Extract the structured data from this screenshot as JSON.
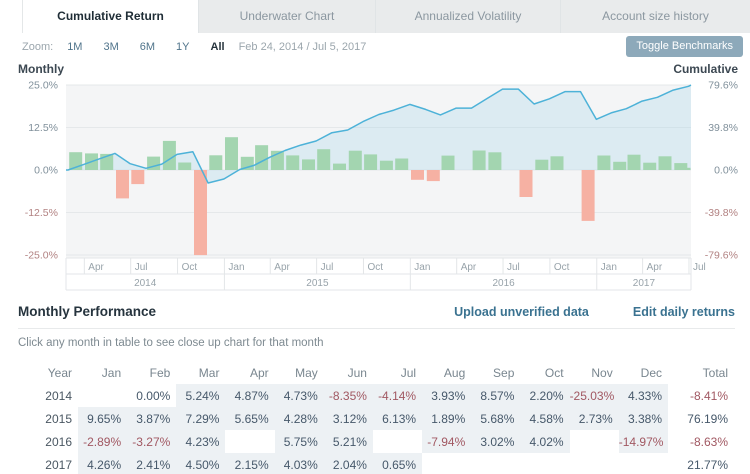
{
  "tabs": [
    {
      "label": "Cumulative Return",
      "active": true
    },
    {
      "label": "Underwater Chart",
      "active": false
    },
    {
      "label": "Annualized Volatility",
      "active": false
    },
    {
      "label": "Account size history",
      "active": false
    }
  ],
  "toolbar": {
    "zoom_label": "Zoom:",
    "ranges": [
      "1M",
      "3M",
      "6M",
      "1Y",
      "All"
    ],
    "active_range": "All",
    "date_range": "Feb 24, 2014 / Jul 5, 2017",
    "toggle_benchmarks_label": "Toggle Benchmarks"
  },
  "chart_data": {
    "type": "combo",
    "left_axis": {
      "title": "Monthly",
      "ticks": [
        "25.0%",
        "12.5%",
        "0.0%",
        "-12.5%",
        "-25.0%"
      ],
      "range": [
        -25,
        25
      ]
    },
    "right_axis": {
      "title": "Cumulative",
      "ticks": [
        "79.6%",
        "39.8%",
        "0.0%",
        "-39.8%",
        "-79.6%"
      ],
      "range": [
        -79.6,
        79.6
      ]
    },
    "x_axis": {
      "start": "2014-02-24",
      "end": "2017-07-05",
      "quarter_ticks": [
        {
          "label": "Apr",
          "date": "2014-04-01"
        },
        {
          "label": "Jul",
          "date": "2014-07-01"
        },
        {
          "label": "Oct",
          "date": "2014-10-01"
        },
        {
          "label": "Jan",
          "date": "2015-01-01"
        },
        {
          "label": "Apr",
          "date": "2015-04-01"
        },
        {
          "label": "Jul",
          "date": "2015-07-01"
        },
        {
          "label": "Oct",
          "date": "2015-10-01"
        },
        {
          "label": "Jan",
          "date": "2016-01-01"
        },
        {
          "label": "Apr",
          "date": "2016-04-01"
        },
        {
          "label": "Jul",
          "date": "2016-07-01"
        },
        {
          "label": "Oct",
          "date": "2016-10-01"
        },
        {
          "label": "Jan",
          "date": "2017-01-01"
        },
        {
          "label": "Apr",
          "date": "2017-04-01"
        },
        {
          "label": "Jul",
          "date": "2017-07-01"
        }
      ],
      "year_bands": [
        {
          "label": "2014",
          "from": "2014-02-24",
          "to": "2015-01-01"
        },
        {
          "label": "2015",
          "from": "2015-01-01",
          "to": "2016-01-01"
        },
        {
          "label": "2016",
          "from": "2016-01-01",
          "to": "2017-01-01"
        },
        {
          "label": "2017",
          "from": "2017-01-01",
          "to": "2017-07-05"
        }
      ]
    },
    "months": [
      "2014-02",
      "2014-03",
      "2014-04",
      "2014-05",
      "2014-06",
      "2014-07",
      "2014-08",
      "2014-09",
      "2014-10",
      "2014-11",
      "2014-12",
      "2015-01",
      "2015-02",
      "2015-03",
      "2015-04",
      "2015-05",
      "2015-06",
      "2015-07",
      "2015-08",
      "2015-09",
      "2015-10",
      "2015-11",
      "2015-12",
      "2016-01",
      "2016-02",
      "2016-03",
      "2016-04",
      "2016-05",
      "2016-06",
      "2016-07",
      "2016-08",
      "2016-09",
      "2016-10",
      "2016-11",
      "2016-12",
      "2017-01",
      "2017-02",
      "2017-03",
      "2017-04",
      "2017-05",
      "2017-06",
      "2017-07"
    ],
    "series": [
      {
        "name": "Monthly Return",
        "type": "column",
        "axis": "left",
        "values": [
          0.0,
          5.24,
          4.87,
          4.73,
          -8.35,
          -4.14,
          3.93,
          8.57,
          2.2,
          -25.03,
          4.33,
          9.65,
          3.87,
          7.29,
          5.65,
          4.28,
          3.12,
          6.13,
          1.89,
          5.68,
          4.58,
          2.73,
          3.38,
          -2.89,
          -3.27,
          4.23,
          null,
          5.75,
          5.21,
          null,
          -7.94,
          3.02,
          4.02,
          null,
          -14.97,
          4.26,
          2.41,
          4.5,
          2.15,
          4.03,
          2.04,
          0.65
        ]
      },
      {
        "name": "Cumulative Return",
        "type": "area",
        "axis": "right",
        "values": [
          0.0,
          5.24,
          10.37,
          15.59,
          5.94,
          1.55,
          5.54,
          14.59,
          17.11,
          -12.2,
          -8.4,
          0.44,
          4.33,
          11.93,
          18.25,
          23.31,
          27.16,
          34.95,
          37.5,
          45.31,
          51.96,
          56.11,
          61.39,
          56.71,
          51.59,
          58.0,
          58.0,
          67.09,
          75.79,
          75.79,
          61.83,
          66.71,
          73.41,
          73.41,
          47.46,
          53.74,
          57.45,
          64.53,
          68.05,
          74.79,
          78.36,
          79.52
        ]
      }
    ],
    "colors": {
      "positive_bar": "#a3d5b0",
      "negative_bar": "#f6b1a3",
      "line": "#4db2d8",
      "area_fill": "rgba(165,212,233,0.30)",
      "plot_bg": "#f4f5f6",
      "grid": "#e5e8ea",
      "frame": "#e3e6e8",
      "axis_label": "#80909b",
      "axis_label_negative": "#b28282",
      "month_label": "#98a3aa"
    }
  },
  "performance": {
    "title": "Monthly Performance",
    "actions": [
      {
        "label": "Upload unverified data"
      },
      {
        "label": "Edit daily returns"
      }
    ],
    "subtitle": "Click any month in table to see close up chart for that month",
    "table": {
      "headers": [
        "Year",
        "Jan",
        "Feb",
        "Mar",
        "Apr",
        "May",
        "Jun",
        "Jul",
        "Aug",
        "Sep",
        "Oct",
        "Nov",
        "Dec",
        "Total"
      ],
      "rows": [
        {
          "year": "2014",
          "cells": [
            "",
            "0.00%",
            "5.24%",
            "4.87%",
            "4.73%",
            "-8.35%",
            "-4.14%",
            "3.93%",
            "8.57%",
            "2.20%",
            "-25.03%",
            "4.33%"
          ],
          "shaded": [
            false,
            false,
            true,
            true,
            true,
            true,
            true,
            true,
            true,
            true,
            true,
            true
          ],
          "total": "-8.41%"
        },
        {
          "year": "2015",
          "cells": [
            "9.65%",
            "3.87%",
            "7.29%",
            "5.65%",
            "4.28%",
            "3.12%",
            "6.13%",
            "1.89%",
            "5.68%",
            "4.58%",
            "2.73%",
            "3.38%"
          ],
          "shaded": [
            true,
            true,
            true,
            true,
            true,
            true,
            true,
            true,
            true,
            true,
            true,
            true
          ],
          "total": "76.19%"
        },
        {
          "year": "2016",
          "cells": [
            "-2.89%",
            "-3.27%",
            "4.23%",
            "",
            "5.75%",
            "5.21%",
            "",
            "-7.94%",
            "3.02%",
            "4.02%",
            "",
            "-14.97%"
          ],
          "shaded": [
            true,
            true,
            true,
            false,
            true,
            true,
            false,
            true,
            true,
            true,
            false,
            true
          ],
          "total": "-8.63%"
        },
        {
          "year": "2017",
          "cells": [
            "4.26%",
            "2.41%",
            "4.50%",
            "2.15%",
            "4.03%",
            "2.04%",
            "0.65%",
            "",
            "",
            "",
            "",
            ""
          ],
          "shaded": [
            true,
            true,
            true,
            true,
            true,
            true,
            true,
            false,
            false,
            false,
            false,
            false
          ],
          "total": "21.77%"
        }
      ]
    }
  }
}
